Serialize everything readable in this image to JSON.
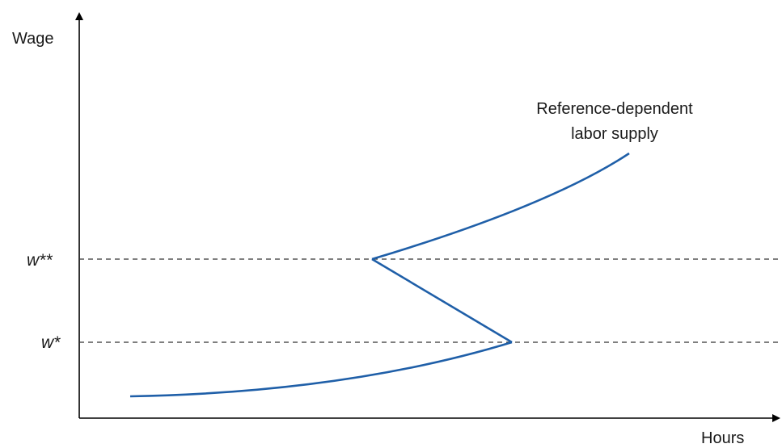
{
  "axes": {
    "y_label": "Wage",
    "x_label": "Hours"
  },
  "levels": {
    "upper": "w**",
    "lower": "w*"
  },
  "curve": {
    "label_line1": "Reference-dependent",
    "label_line2": "labor supply",
    "color": "#1f5fa8"
  },
  "colors": {
    "axis": "#000000",
    "dashed": "#333333"
  }
}
